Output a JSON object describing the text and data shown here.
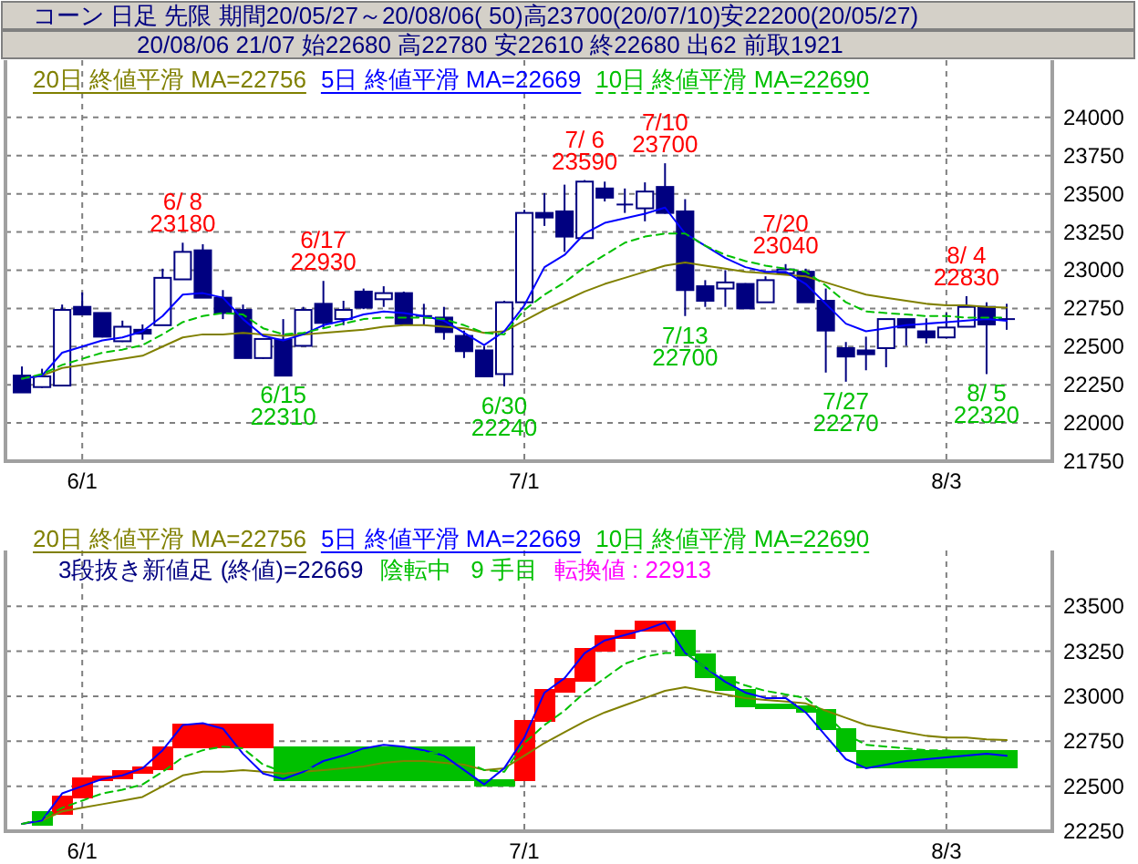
{
  "chart_data": [
    {
      "type": "candlestick",
      "title": "コーン 日足 先限 期間20/05/27～20/08/06( 50)高23700(20/07/10)安22200(20/05/27)",
      "subtitle": "20/08/06 21/07 始22680 高22780 安22610 終22680 出62 前取1921",
      "color": "#000080",
      "categories": [
        null,
        null,
        null,
        "6/1",
        null,
        null,
        null,
        null,
        null,
        null,
        null,
        null,
        null,
        null,
        null,
        null,
        null,
        null,
        null,
        null,
        null,
        null,
        null,
        null,
        null,
        "7/1",
        null,
        null,
        null,
        null,
        null,
        null,
        null,
        null,
        null,
        null,
        null,
        null,
        null,
        null,
        null,
        null,
        null,
        null,
        null,
        null,
        "8/3",
        null,
        null,
        null
      ],
      "ohlc": [
        [
          22310,
          22370,
          22200,
          22200
        ],
        [
          22235,
          22355,
          22230,
          22305
        ],
        [
          22245,
          22775,
          22245,
          22740
        ],
        [
          22760,
          22855,
          22710,
          22710
        ],
        [
          22720,
          22720,
          22560,
          22565
        ],
        [
          22535,
          22670,
          22530,
          22630
        ],
        [
          22610,
          22645,
          22545,
          22585
        ],
        [
          22640,
          23010,
          22640,
          22950
        ],
        [
          22940,
          23180,
          22940,
          23120
        ],
        [
          23130,
          23170,
          22820,
          22820
        ],
        [
          22820,
          22870,
          22680,
          22720
        ],
        [
          22740,
          22775,
          22425,
          22425
        ],
        [
          22425,
          22555,
          22420,
          22550
        ],
        [
          22545,
          22680,
          22310,
          22310
        ],
        [
          22505,
          22760,
          22505,
          22740
        ],
        [
          22780,
          22930,
          22625,
          22655
        ],
        [
          22680,
          22800,
          22640,
          22740
        ],
        [
          22860,
          22880,
          22745,
          22755
        ],
        [
          22810,
          22895,
          22760,
          22850
        ],
        [
          22850,
          22860,
          22650,
          22650
        ],
        [
          22700,
          22780,
          22645,
          22700
        ],
        [
          22690,
          22760,
          22545,
          22595
        ],
        [
          22570,
          22605,
          22425,
          22470
        ],
        [
          22475,
          22505,
          22300,
          22305
        ],
        [
          22320,
          22800,
          22240,
          22790
        ],
        [
          22790,
          23395,
          22790,
          23375
        ],
        [
          23375,
          23505,
          23290,
          23345
        ],
        [
          23385,
          23560,
          23120,
          23220
        ],
        [
          23210,
          23590,
          23210,
          23580
        ],
        [
          23535,
          23580,
          23450,
          23475
        ],
        [
          23430,
          23535,
          23375,
          23430
        ],
        [
          23405,
          23575,
          23320,
          23515
        ],
        [
          23545,
          23700,
          23370,
          23375
        ],
        [
          23385,
          23465,
          22700,
          22870
        ],
        [
          22895,
          22935,
          22760,
          22800
        ],
        [
          22880,
          23000,
          22760,
          22920
        ],
        [
          22910,
          22915,
          22750,
          22750
        ],
        [
          22790,
          22960,
          22790,
          22935
        ],
        [
          22980,
          23040,
          22975,
          23005
        ],
        [
          22990,
          23010,
          22790,
          22790
        ],
        [
          22800,
          22880,
          22330,
          22605
        ],
        [
          22490,
          22530,
          22270,
          22435
        ],
        [
          22475,
          22565,
          22345,
          22450
        ],
        [
          22490,
          22680,
          22365,
          22680
        ],
        [
          22680,
          22680,
          22505,
          22625
        ],
        [
          22600,
          22685,
          22520,
          22560
        ],
        [
          22560,
          22720,
          22555,
          22625
        ],
        [
          22630,
          22830,
          22630,
          22760
        ],
        [
          22760,
          22790,
          22320,
          22645
        ],
        [
          22680,
          22780,
          22610,
          22680
        ]
      ],
      "series": [
        {
          "name": "20日 終値平滑 MA=22756",
          "type": "line",
          "color": "#808000",
          "line_style": "solid",
          "values": [
            22290,
            22310,
            22360,
            22380,
            22400,
            22420,
            22440,
            22500,
            22560,
            22580,
            22580,
            22590,
            22580,
            22570,
            22580,
            22590,
            22600,
            22610,
            22630,
            22640,
            22640,
            22630,
            22620,
            22590,
            22600,
            22670,
            22740,
            22800,
            22860,
            22910,
            22950,
            22990,
            23030,
            23050,
            23030,
            23010,
            22990,
            22980,
            22970,
            22960,
            22920,
            22880,
            22840,
            22820,
            22800,
            22780,
            22770,
            22770,
            22760,
            22756
          ]
        },
        {
          "name": "5日 終値平滑 MA=22669",
          "type": "line",
          "color": "#0000ff",
          "line_style": "solid",
          "values": [
            22290,
            22310,
            22460,
            22500,
            22540,
            22560,
            22600,
            22700,
            22840,
            22850,
            22820,
            22680,
            22570,
            22540,
            22580,
            22640,
            22670,
            22710,
            22730,
            22720,
            22700,
            22670,
            22590,
            22510,
            22600,
            22770,
            23020,
            23100,
            23240,
            23310,
            23340,
            23370,
            23410,
            23240,
            23160,
            23080,
            23020,
            22990,
            22990,
            22910,
            22780,
            22650,
            22600,
            22620,
            22640,
            22650,
            22660,
            22670,
            22680,
            22669
          ]
        },
        {
          "name": "10日 終値平滑 MA=22690",
          "type": "line",
          "color": "#00c000",
          "line_style": "dashed",
          "values": [
            22290,
            22320,
            22380,
            22420,
            22460,
            22480,
            22510,
            22580,
            22660,
            22700,
            22720,
            22710,
            22620,
            22580,
            22590,
            22620,
            22650,
            22680,
            22690,
            22690,
            22690,
            22680,
            22640,
            22590,
            22580,
            22740,
            22840,
            22920,
            23020,
            23100,
            23180,
            23220,
            23240,
            23240,
            23160,
            23100,
            23060,
            23030,
            23010,
            22990,
            22900,
            22790,
            22730,
            22720,
            22710,
            22700,
            22700,
            22690,
            22690,
            22690
          ]
        }
      ],
      "ylim": [
        21750,
        24375
      ],
      "yticks": [
        21750,
        22000,
        22250,
        22500,
        22750,
        23000,
        23250,
        23500,
        23750,
        24000
      ],
      "grid": true,
      "legend": "top left",
      "annotations": [
        {
          "text": "6/ 8\n23180",
          "y": 23180
        },
        {
          "text": "6/15\n22310",
          "y": 22310
        },
        {
          "text": "6/17\n22930",
          "y": 22930
        },
        {
          "text": "6/30\n22240",
          "y": 22240
        },
        {
          "text": "7/ 6\n23590",
          "y": 23590
        },
        {
          "text": "7/10\n23700",
          "y": 23700
        },
        {
          "text": "7/13\n22700",
          "y": 22700
        },
        {
          "text": "7/20\n23040",
          "y": 23040
        },
        {
          "text": "7/27\n22270",
          "y": 22270
        },
        {
          "text": "8/ 4\n22830",
          "y": 22830
        },
        {
          "text": "8/ 5\n22320",
          "y": 22320
        }
      ]
    },
    {
      "type": "bar",
      "categories": [
        null,
        null,
        null,
        "6/1",
        null,
        null,
        null,
        null,
        null,
        null,
        null,
        null,
        null,
        null,
        null,
        null,
        null,
        null,
        null,
        null,
        null,
        null,
        null,
        null,
        null,
        "7/1",
        null,
        null,
        null,
        null,
        null,
        null,
        null,
        null,
        null,
        null,
        null,
        null,
        null,
        null,
        null,
        null,
        null,
        null,
        null,
        null,
        "8/3",
        null,
        null,
        null
      ],
      "series": [
        {
          "base": [
            null,
            22280,
            22340,
            22430,
            22530,
            22540,
            22570,
            22590,
            22710,
            22710,
            22710,
            22710,
            22710,
            22530,
            22530,
            22530,
            22530,
            22530,
            22530,
            22530,
            22530,
            22530,
            22530,
            22500,
            22500,
            22530,
            22860,
            23020,
            23080,
            23250,
            23320,
            23360,
            23360,
            23220,
            23100,
            23030,
            22940,
            22930,
            22930,
            22910,
            22810,
            22690,
            22600,
            22600,
            22600,
            22600,
            22600,
            22600,
            22600,
            22600
          ],
          "values": [
            null,
            80,
            110,
            120,
            30,
            50,
            40,
            130,
            140,
            140,
            140,
            140,
            140,
            190,
            190,
            190,
            190,
            190,
            190,
            190,
            190,
            190,
            190,
            40,
            40,
            340,
            180,
            80,
            190,
            90,
            50,
            60,
            60,
            150,
            140,
            80,
            100,
            30,
            30,
            40,
            120,
            130,
            100,
            100,
            100,
            100,
            100,
            100,
            100,
            100
          ],
          "colors": [
            null,
            "#00c000",
            "#ff0000",
            "#ff0000",
            "#ff0000",
            "#ff0000",
            "#ff0000",
            "#ff0000",
            "#ff0000",
            "#ff0000",
            "#ff0000",
            "#ff0000",
            "#ff0000",
            "#00c000",
            "#00c000",
            "#00c000",
            "#00c000",
            "#00c000",
            "#00c000",
            "#00c000",
            "#00c000",
            "#00c000",
            "#00c000",
            "#00c000",
            "#00c000",
            "#ff0000",
            "#ff0000",
            "#ff0000",
            "#ff0000",
            "#ff0000",
            "#ff0000",
            "#ff0000",
            "#ff0000",
            "#00c000",
            "#00c000",
            "#00c000",
            "#00c000",
            "#00c000",
            "#00c000",
            "#00c000",
            "#00c000",
            "#00c000",
            "#00c000",
            "#00c000",
            "#00c000",
            "#00c000",
            "#00c000",
            "#00c000",
            "#00c000",
            "#00c000"
          ]
        },
        {
          "name": "20日 終値平滑 MA=22756",
          "type": "line",
          "color": "#808000",
          "line_style": "solid",
          "values": [
            22290,
            22310,
            22360,
            22380,
            22400,
            22420,
            22440,
            22500,
            22560,
            22580,
            22580,
            22590,
            22580,
            22570,
            22580,
            22590,
            22600,
            22610,
            22630,
            22640,
            22640,
            22630,
            22620,
            22590,
            22600,
            22670,
            22740,
            22800,
            22860,
            22910,
            22950,
            22990,
            23030,
            23050,
            23030,
            23010,
            22990,
            22980,
            22970,
            22960,
            22920,
            22880,
            22840,
            22820,
            22800,
            22780,
            22770,
            22770,
            22760,
            22756
          ]
        },
        {
          "name": "5日 終値平滑 MA=22669",
          "type": "line",
          "color": "#0000ff",
          "line_style": "solid",
          "values": [
            22290,
            22310,
            22460,
            22500,
            22540,
            22560,
            22600,
            22700,
            22840,
            22850,
            22820,
            22680,
            22570,
            22540,
            22580,
            22640,
            22670,
            22710,
            22730,
            22720,
            22700,
            22670,
            22590,
            22510,
            22600,
            22770,
            23020,
            23100,
            23240,
            23310,
            23340,
            23370,
            23410,
            23240,
            23160,
            23080,
            23020,
            22990,
            22990,
            22910,
            22780,
            22650,
            22600,
            22620,
            22640,
            22650,
            22660,
            22670,
            22680,
            22669
          ]
        },
        {
          "name": "10日 終値平滑 MA=22690",
          "type": "line",
          "color": "#00c000",
          "line_style": "dashed",
          "values": [
            22290,
            22320,
            22380,
            22420,
            22460,
            22480,
            22510,
            22580,
            22660,
            22700,
            22720,
            22710,
            22620,
            22580,
            22590,
            22620,
            22650,
            22680,
            22690,
            22690,
            22690,
            22680,
            22640,
            22590,
            22580,
            22740,
            22840,
            22920,
            23020,
            23100,
            23180,
            23220,
            23240,
            23240,
            23160,
            23100,
            23060,
            23030,
            23010,
            22990,
            22900,
            22790,
            22730,
            22720,
            22710,
            22700,
            22700,
            22690,
            22690,
            22690
          ]
        }
      ],
      "ylim": [
        22250,
        23810
      ],
      "yticks": [
        22250,
        22500,
        22750,
        23000,
        23250,
        23500
      ],
      "grid": true,
      "legend": "top left",
      "annotations": [
        "3段抜き新値足 (終値)=22669",
        "陰転中   9 手目",
        "転換値 : 22913"
      ]
    }
  ]
}
